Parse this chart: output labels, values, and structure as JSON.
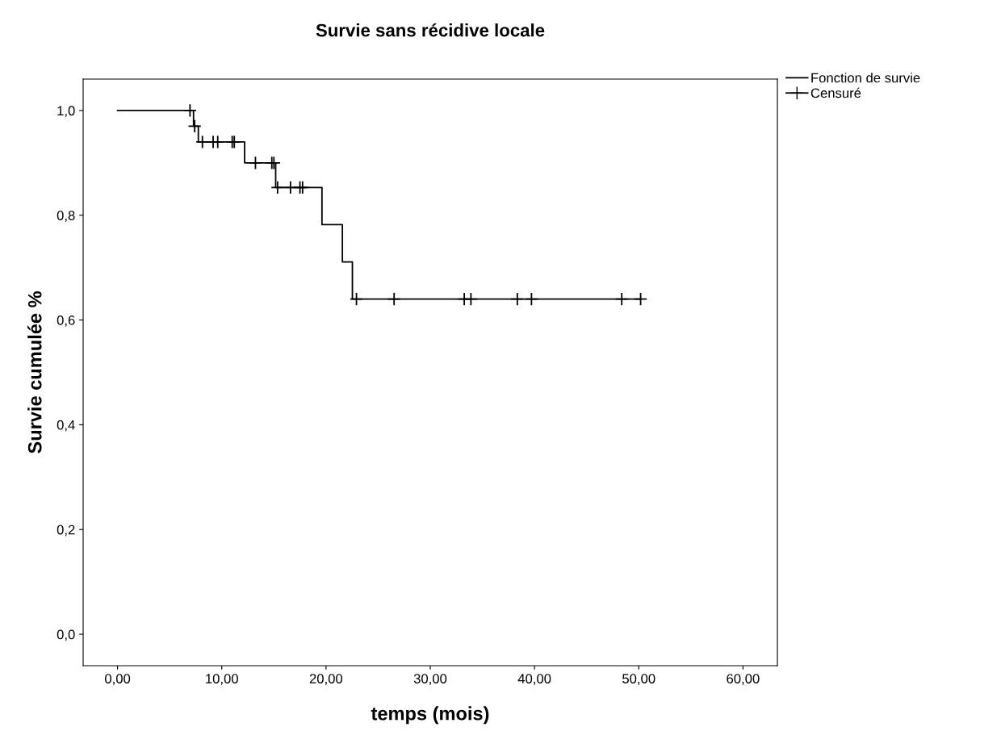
{
  "chart_data": {
    "type": "step",
    "title": "Survie sans récidive locale",
    "xlabel": "temps (mois)",
    "ylabel": "Survie cumulée %",
    "xlim": [
      -3.3,
      63.3
    ],
    "ylim": [
      -0.06,
      1.06
    ],
    "xticks": [
      {
        "value": 0,
        "label": "0,00"
      },
      {
        "value": 10,
        "label": "10,00"
      },
      {
        "value": 20,
        "label": "20,00"
      },
      {
        "value": 30,
        "label": "30,00"
      },
      {
        "value": 40,
        "label": "40,00"
      },
      {
        "value": 50,
        "label": "50,00"
      },
      {
        "value": 60,
        "label": "60,00"
      }
    ],
    "yticks": [
      {
        "value": 0,
        "label": "0,0"
      },
      {
        "value": 0.2,
        "label": "0,2"
      },
      {
        "value": 0.4,
        "label": "0,4"
      },
      {
        "value": 0.6,
        "label": "0,6"
      },
      {
        "value": 0.8,
        "label": "0,8"
      },
      {
        "value": 1.0,
        "label": "1,0"
      }
    ],
    "grid": false,
    "legend": "top right",
    "series": [
      {
        "name": "Fonction de survie",
        "color": "#000000",
        "marker": "none",
        "x": [
          0,
          7.29,
          7.75,
          12.19,
          15.17,
          19.61,
          21.57,
          22.53,
          50.18
        ],
        "values": [
          1.0,
          0.97,
          0.94,
          0.9,
          0.853,
          0.782,
          0.711,
          0.64,
          0.64
        ]
      },
      {
        "name": "Censuré",
        "type": "scatter",
        "color": "#000000",
        "marker": "cross",
        "x": [
          6.95,
          7.4,
          8.14,
          9.17,
          9.61,
          11.0,
          11.2,
          13.23,
          14.8,
          15.0,
          15.35,
          16.59,
          17.5,
          17.75,
          22.92,
          26.53,
          33.26,
          33.9,
          38.35,
          39.71,
          48.37,
          50.18
        ],
        "values": [
          1.0,
          0.97,
          0.94,
          0.94,
          0.94,
          0.94,
          0.94,
          0.9,
          0.9,
          0.9,
          0.853,
          0.853,
          0.853,
          0.853,
          0.64,
          0.64,
          0.64,
          0.64,
          0.64,
          0.64,
          0.64,
          0.64
        ]
      }
    ]
  }
}
